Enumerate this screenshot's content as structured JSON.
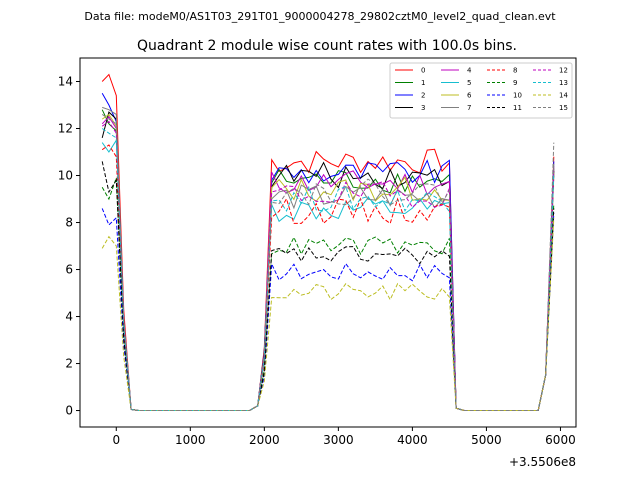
{
  "chart_data": {
    "type": "line",
    "suptitle": "Data file: modeM0/AS1T03_291T01_9000004278_29802cztM0_level2_quad_clean.evt",
    "title": "Quadrant 2 module wise count rates with 100.0s bins.",
    "offset_label": "+3.5506e8",
    "xlim": [
      -490,
      6210
    ],
    "ylim": [
      -0.7,
      15.0
    ],
    "x_ticks": [
      0,
      1000,
      2000,
      3000,
      4000,
      5000,
      6000
    ],
    "y_ticks": [
      0,
      2,
      4,
      6,
      8,
      10,
      12,
      14
    ],
    "grid": false,
    "legend_position": "top-right",
    "legend_columns": 4,
    "gti": {
      "seg1": [
        -190,
        290
      ],
      "gap1": [
        290,
        1910
      ],
      "seg2": [
        1910,
        4590
      ],
      "gap2": [
        4590,
        5700
      ],
      "seg3": [
        5700,
        5910
      ]
    },
    "series": [
      {
        "name": "0",
        "color": "#ff0000",
        "dash": "solid",
        "level": 10.6,
        "seg1": [
          14.0,
          14.3,
          13.4,
          4.3
        ],
        "end": 10.8
      },
      {
        "name": "1",
        "color": "#008000",
        "dash": "solid",
        "level": 9.8,
        "seg1": [
          12.8,
          12.2,
          11.9,
          3.9
        ],
        "end": 10.3
      },
      {
        "name": "2",
        "color": "#0000ff",
        "dash": "solid",
        "level": 10.1,
        "seg1": [
          13.5,
          13.0,
          12.3,
          3.9
        ],
        "end": 10.6
      },
      {
        "name": "3",
        "color": "#000000",
        "dash": "solid",
        "level": 10.0,
        "seg1": [
          11.6,
          12.7,
          12.4,
          3.8
        ],
        "end": 10.2
      },
      {
        "name": "4",
        "color": "#bf00bf",
        "dash": "solid",
        "level": 9.7,
        "seg1": [
          12.2,
          12.5,
          12.0,
          3.9
        ],
        "end": 10.4
      },
      {
        "name": "5",
        "color": "#17becf",
        "dash": "solid",
        "level": 8.5,
        "seg1": [
          11.4,
          11.0,
          11.5,
          3.6
        ],
        "end": 10.0
      },
      {
        "name": "6",
        "color": "#bcbd22",
        "dash": "solid",
        "level": 9.4,
        "seg1": [
          12.4,
          12.6,
          12.1,
          3.8
        ],
        "end": 10.1
      },
      {
        "name": "7",
        "color": "#7f7f7f",
        "dash": "solid",
        "level": 9.1,
        "seg1": [
          12.9,
          12.8,
          12.6,
          3.9
        ],
        "end": 10.5
      },
      {
        "name": "8",
        "color": "#ff0000",
        "dash": "dashed",
        "level": 8.5,
        "seg1": [
          11.1,
          11.3,
          10.8,
          3.5
        ],
        "end": 10.0
      },
      {
        "name": "9",
        "color": "#008000",
        "dash": "dashed",
        "level": 7.0,
        "seg1": [
          9.5,
          9.0,
          9.9,
          3.1
        ],
        "end": 8.8
      },
      {
        "name": "10",
        "color": "#0000ff",
        "dash": "dashed",
        "level": 5.9,
        "seg1": [
          8.6,
          7.9,
          8.2,
          2.8
        ],
        "end": 8.4
      },
      {
        "name": "11",
        "color": "#000000",
        "dash": "dashed",
        "level": 6.6,
        "seg1": [
          10.6,
          9.3,
          9.8,
          3.1
        ],
        "end": 8.6
      },
      {
        "name": "12",
        "color": "#bf00bf",
        "dash": "dashed",
        "level": 9.2,
        "seg1": [
          12.1,
          12.3,
          11.8,
          3.8
        ],
        "end": 10.2
      },
      {
        "name": "13",
        "color": "#17becf",
        "dash": "dashed",
        "level": 9.0,
        "seg1": [
          12.0,
          11.8,
          11.6,
          3.7
        ],
        "end": 10.1
      },
      {
        "name": "14",
        "color": "#bcbd22",
        "dash": "dashed",
        "level": 5.0,
        "seg1": [
          6.9,
          7.4,
          7.0,
          2.3
        ],
        "end": 8.2
      },
      {
        "name": "15",
        "color": "#7f7f7f",
        "dash": "dashed",
        "level": 9.3,
        "seg1": [
          12.6,
          12.4,
          12.2,
          3.9
        ],
        "end": 11.4
      }
    ]
  }
}
